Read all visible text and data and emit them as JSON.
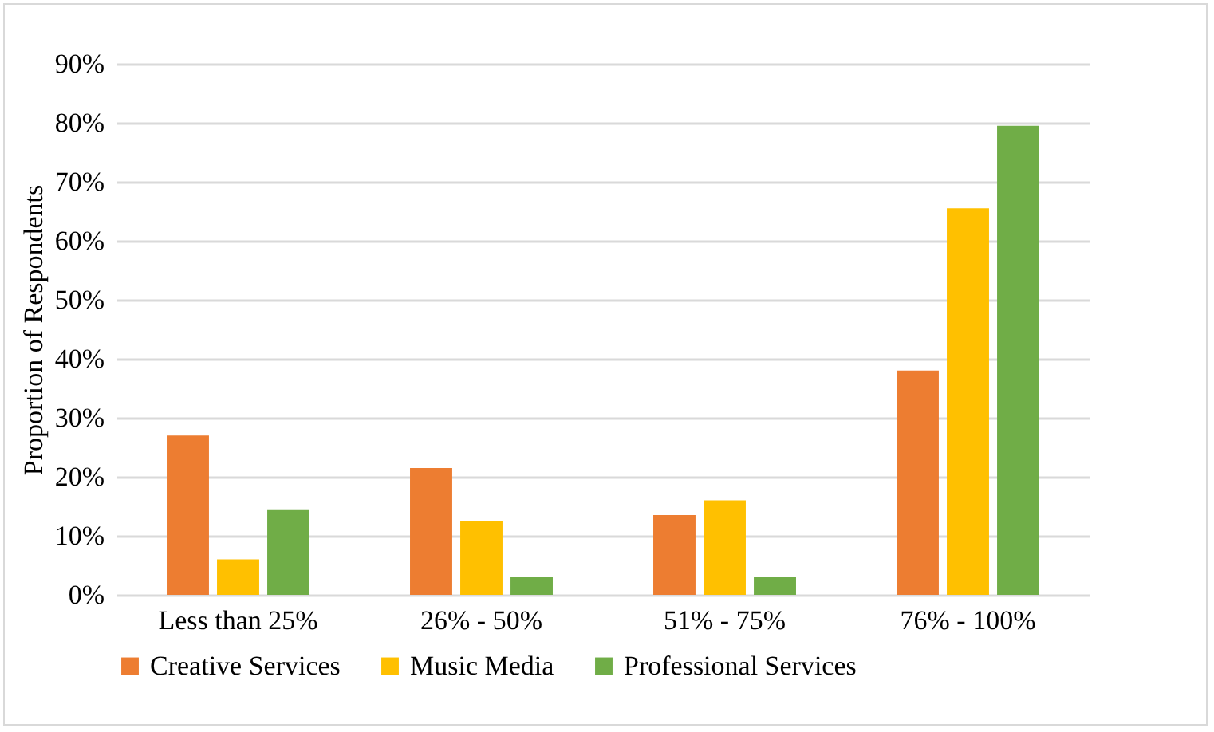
{
  "chart_data": {
    "type": "bar",
    "ylabel": "Proportion of Respondents",
    "categories": [
      "Less than 25%",
      "26% - 50%",
      "51% - 75%",
      "76% - 100%"
    ],
    "series": [
      {
        "name": "Creative Services",
        "color": "#ed7d31",
        "values": [
          27,
          21.5,
          13.5,
          38
        ]
      },
      {
        "name": "Music Media",
        "color": "#ffc000",
        "values": [
          6,
          12.5,
          16,
          65.5
        ]
      },
      {
        "name": "Professional Services",
        "color": "#70ad47",
        "values": [
          14.5,
          3,
          3,
          79.5
        ]
      }
    ],
    "ylim": [
      0,
      90
    ],
    "yticks": [
      {
        "value": 0,
        "label": "0%"
      },
      {
        "value": 10,
        "label": "10%"
      },
      {
        "value": 20,
        "label": "20%"
      },
      {
        "value": 30,
        "label": "30%"
      },
      {
        "value": 40,
        "label": "40%"
      },
      {
        "value": 50,
        "label": "50%"
      },
      {
        "value": 60,
        "label": "60%"
      },
      {
        "value": 70,
        "label": "70%"
      },
      {
        "value": 80,
        "label": "80%"
      },
      {
        "value": 90,
        "label": "90%"
      }
    ],
    "grid": true,
    "legend": "bottom"
  }
}
